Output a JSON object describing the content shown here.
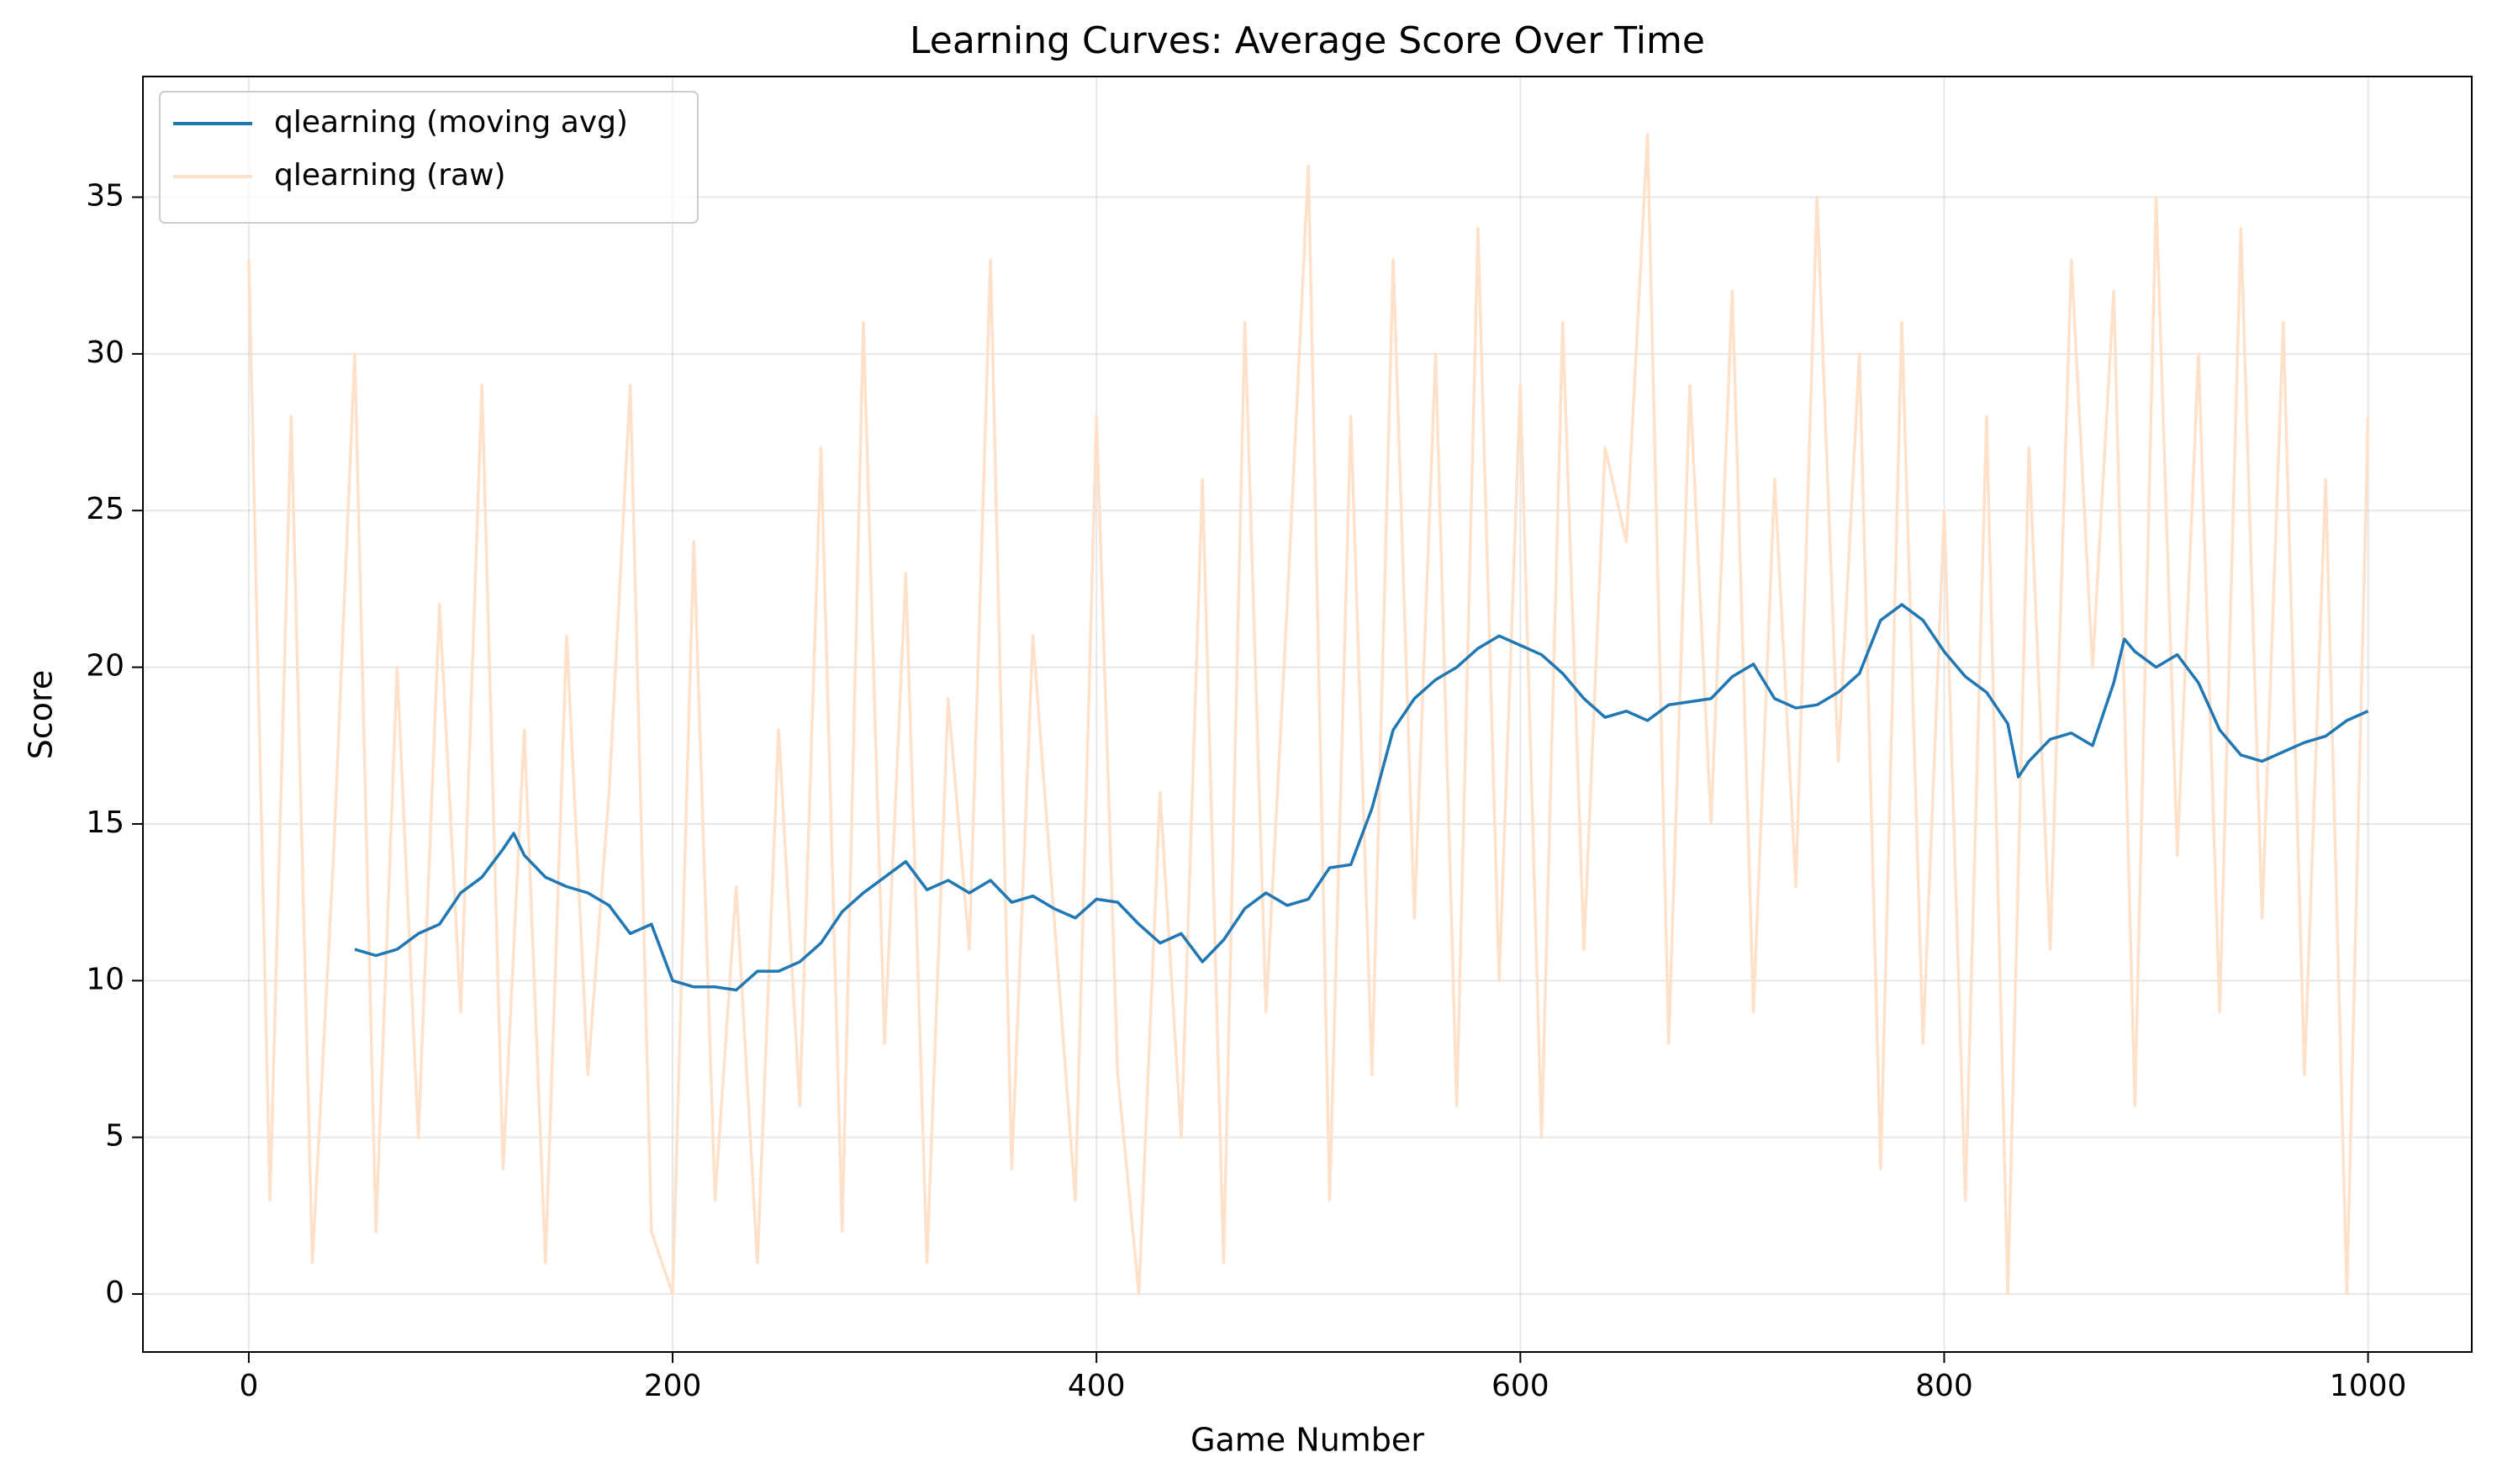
{
  "chart_data": {
    "type": "line",
    "title": "Learning Curves: Average Score Over Time",
    "x_label": "Game Number",
    "y_label": "Score",
    "xlim": [
      -49.95,
      1048.95
    ],
    "ylim": [
      -1.85,
      38.85
    ],
    "xticks": [
      0,
      200,
      400,
      600,
      800,
      1000
    ],
    "yticks": [
      0,
      5,
      10,
      15,
      20,
      25,
      30,
      35
    ],
    "grid": true,
    "legend": "upper-left",
    "series": [
      {
        "name": "qlearning (moving avg)",
        "color": "#1f77b4",
        "x": [
          50,
          60,
          70,
          80,
          90,
          100,
          110,
          120,
          125,
          130,
          140,
          150,
          160,
          170,
          180,
          190,
          200,
          210,
          220,
          230,
          240,
          250,
          260,
          270,
          280,
          290,
          300,
          310,
          320,
          330,
          340,
          350,
          360,
          370,
          380,
          390,
          400,
          410,
          420,
          430,
          440,
          450,
          460,
          470,
          480,
          490,
          500,
          510,
          520,
          530,
          540,
          550,
          560,
          570,
          580,
          590,
          600,
          610,
          620,
          630,
          640,
          650,
          660,
          670,
          680,
          690,
          700,
          710,
          720,
          730,
          740,
          750,
          760,
          770,
          780,
          790,
          800,
          810,
          820,
          830,
          835,
          840,
          850,
          860,
          870,
          880,
          885,
          890,
          900,
          910,
          920,
          930,
          940,
          950,
          960,
          970,
          980,
          990,
          1000
        ],
        "values": [
          11.0,
          10.8,
          11.0,
          11.5,
          11.8,
          12.8,
          13.3,
          14.2,
          14.7,
          14.0,
          13.3,
          13.0,
          12.8,
          12.4,
          11.5,
          11.8,
          10.0,
          9.8,
          9.8,
          9.7,
          10.3,
          10.3,
          10.6,
          11.2,
          12.2,
          12.8,
          13.3,
          13.8,
          12.9,
          13.2,
          12.8,
          13.2,
          12.5,
          12.7,
          12.3,
          12.0,
          12.6,
          12.5,
          11.8,
          11.2,
          11.5,
          10.6,
          11.3,
          12.3,
          12.8,
          12.4,
          12.6,
          13.6,
          13.7,
          15.5,
          18.0,
          19.0,
          19.6,
          20.0,
          20.6,
          21.0,
          20.7,
          20.4,
          19.8,
          19.0,
          18.4,
          18.6,
          18.3,
          18.8,
          18.9,
          19.0,
          19.7,
          20.1,
          19.0,
          18.7,
          18.8,
          19.2,
          19.8,
          21.5,
          22.0,
          21.5,
          20.5,
          19.7,
          19.2,
          18.2,
          16.5,
          17.0,
          17.7,
          17.9,
          17.5,
          19.5,
          20.9,
          20.5,
          20.0,
          20.4,
          19.5,
          18.0,
          17.2,
          17.0,
          17.3,
          17.6,
          17.8,
          18.3,
          18.6
        ]
      },
      {
        "name": "qlearning (raw)",
        "color": "#ffe0c8",
        "x": [
          0,
          10,
          20,
          30,
          40,
          50,
          60,
          70,
          80,
          90,
          100,
          110,
          120,
          130,
          140,
          150,
          160,
          170,
          180,
          190,
          200,
          210,
          220,
          230,
          240,
          250,
          260,
          270,
          280,
          290,
          300,
          310,
          320,
          330,
          340,
          350,
          360,
          370,
          380,
          390,
          400,
          410,
          420,
          430,
          440,
          450,
          460,
          470,
          480,
          490,
          500,
          510,
          520,
          530,
          540,
          550,
          560,
          570,
          580,
          590,
          600,
          610,
          620,
          630,
          640,
          650,
          660,
          670,
          680,
          690,
          700,
          710,
          720,
          730,
          740,
          750,
          760,
          770,
          780,
          790,
          800,
          810,
          820,
          830,
          840,
          850,
          860,
          870,
          880,
          890,
          900,
          910,
          920,
          930,
          940,
          950,
          960,
          970,
          980,
          990,
          1000
        ],
        "values": [
          33,
          3,
          28,
          1,
          14,
          30,
          2,
          20,
          5,
          22,
          9,
          29,
          4,
          18,
          1,
          21,
          7,
          16,
          29,
          2,
          0,
          24,
          3,
          13,
          1,
          18,
          6,
          27,
          2,
          31,
          8,
          23,
          1,
          19,
          11,
          33,
          4,
          21,
          12,
          3,
          28,
          7,
          0,
          16,
          5,
          26,
          1,
          31,
          9,
          22,
          36,
          3,
          28,
          7,
          33,
          12,
          30,
          6,
          34,
          10,
          29,
          5,
          31,
          11,
          27,
          24,
          37,
          8,
          29,
          15,
          32,
          9,
          26,
          13,
          35,
          17,
          30,
          4,
          31,
          8,
          25,
          3,
          28,
          0,
          27,
          11,
          33,
          20,
          32,
          6,
          35,
          14,
          30,
          9,
          34,
          12,
          31,
          7,
          26,
          0,
          28
        ]
      }
    ]
  }
}
